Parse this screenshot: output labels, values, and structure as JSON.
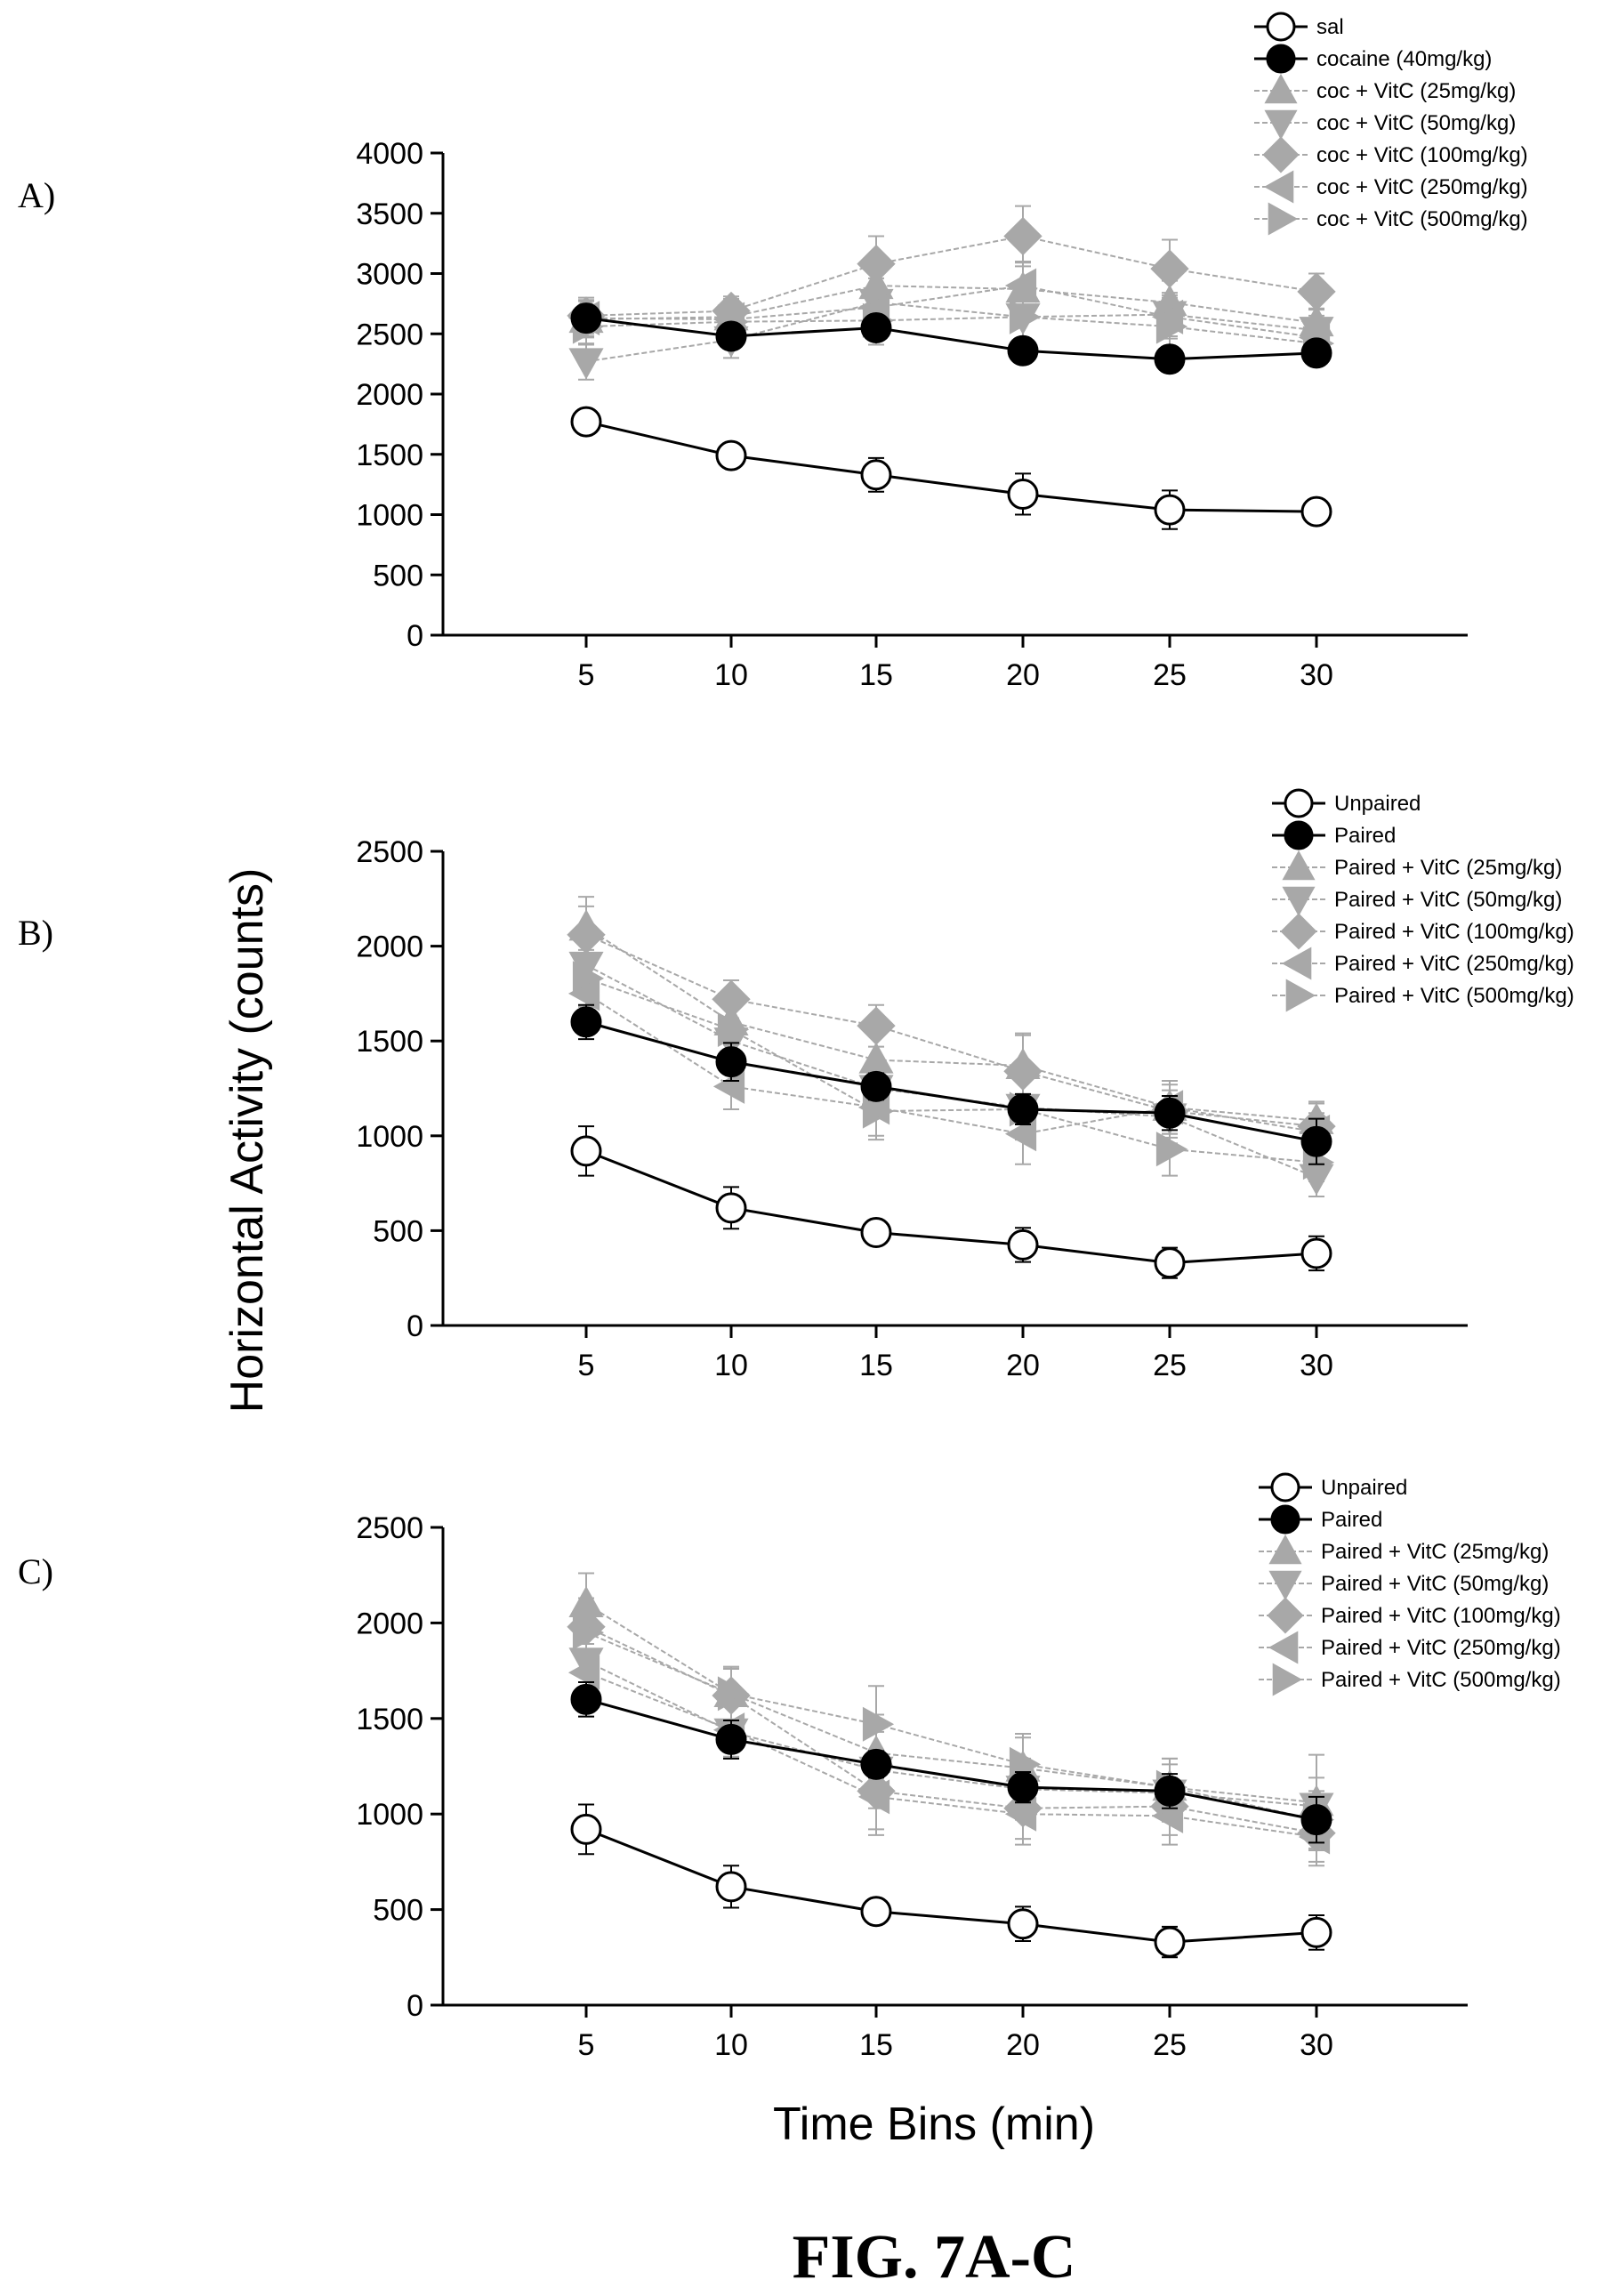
{
  "figure_title": "FIG. 7A-C",
  "shared_ylabel": "Horizontal Activity (counts)",
  "shared_xlabel": "Time Bins (min)",
  "colors": {
    "saline": "#ffffff",
    "cocaine": "#000000",
    "vitc": "#a8a8a8",
    "axis": "#000000"
  },
  "chart_data": [
    {
      "type": "line",
      "panel": "A)",
      "x": [
        5,
        10,
        15,
        20,
        25,
        30
      ],
      "xlim": [
        0,
        35
      ],
      "ylim": [
        0,
        4000
      ],
      "yticks": [
        0,
        500,
        1000,
        1500,
        2000,
        2500,
        3000,
        3500,
        4000
      ],
      "xticks": [
        5,
        10,
        15,
        20,
        25,
        30
      ],
      "legend_position": "top-right",
      "series": [
        {
          "name": "sal",
          "marker": "circle-open",
          "values": [
            1770,
            1490,
            1330,
            1170,
            1040,
            1025
          ],
          "errors": [
            60,
            80,
            140,
            170,
            160,
            90
          ]
        },
        {
          "name": "cocaine (40mg/kg)",
          "marker": "circle-filled",
          "values": [
            2630,
            2480,
            2550,
            2360,
            2290,
            2340
          ],
          "errors": [
            90,
            80,
            100,
            60,
            60,
            70
          ]
        },
        {
          "name": "coc + VitC (25mg/kg)",
          "marker": "triangle-up",
          "values": [
            2620,
            2640,
            2900,
            2870,
            2760,
            2590
          ],
          "errors": [
            150,
            150,
            200,
            220,
            180,
            120
          ]
        },
        {
          "name": "coc + VitC (50mg/kg)",
          "marker": "triangle-down",
          "values": [
            2270,
            2450,
            2760,
            2640,
            2660,
            2530
          ],
          "errors": [
            150,
            150,
            200,
            200,
            180,
            120
          ]
        },
        {
          "name": "coc + VitC (100mg/kg)",
          "marker": "diamond",
          "values": [
            2650,
            2690,
            3080,
            3310,
            3040,
            2850
          ],
          "errors": [
            150,
            120,
            230,
            250,
            240,
            150
          ]
        },
        {
          "name": "coc + VitC (250mg/kg)",
          "marker": "triangle-left",
          "values": [
            2630,
            2620,
            2720,
            2900,
            2640,
            2470
          ],
          "errors": [
            150,
            130,
            200,
            200,
            180,
            120
          ]
        },
        {
          "name": "coc + VitC (500mg/kg)",
          "marker": "triangle-right",
          "values": [
            2560,
            2600,
            2610,
            2640,
            2560,
            2420
          ],
          "errors": [
            150,
            130,
            200,
            200,
            180,
            120
          ]
        }
      ]
    },
    {
      "type": "line",
      "panel": "B)",
      "x": [
        5,
        10,
        15,
        20,
        25,
        30
      ],
      "xlim": [
        0,
        35
      ],
      "ylim": [
        0,
        2500
      ],
      "yticks": [
        0,
        500,
        1000,
        1500,
        2000,
        2500
      ],
      "xticks": [
        5,
        10,
        15,
        20,
        25,
        30
      ],
      "legend_position": "top-right",
      "series": [
        {
          "name": "Unpaired",
          "marker": "circle-open",
          "values": [
            920,
            620,
            490,
            425,
            330,
            380
          ],
          "errors": [
            130,
            110,
            60,
            90,
            80,
            90
          ]
        },
        {
          "name": "Paired",
          "marker": "circle-filled",
          "values": [
            1600,
            1390,
            1260,
            1140,
            1120,
            970
          ],
          "errors": [
            90,
            100,
            70,
            80,
            90,
            120
          ]
        },
        {
          "name": "Paired + VitC (25mg/kg)",
          "marker": "triangle-up",
          "values": [
            2100,
            1600,
            1400,
            1370,
            1150,
            1080
          ],
          "errors": [
            160,
            120,
            150,
            160,
            140,
            100
          ]
        },
        {
          "name": "Paired + VitC (50mg/kg)",
          "marker": "triangle-down",
          "values": [
            1900,
            1500,
            1250,
            1150,
            1100,
            780
          ],
          "errors": [
            150,
            120,
            150,
            160,
            140,
            100
          ]
        },
        {
          "name": "Paired + VitC (100mg/kg)",
          "marker": "diamond",
          "values": [
            2060,
            1720,
            1580,
            1340,
            1130,
            1050
          ],
          "errors": [
            150,
            100,
            110,
            200,
            140,
            120
          ]
        },
        {
          "name": "Paired + VitC (250mg/kg)",
          "marker": "triangle-left",
          "values": [
            1750,
            1260,
            1150,
            1010,
            1150,
            1020
          ],
          "errors": [
            150,
            120,
            150,
            160,
            140,
            100
          ]
        },
        {
          "name": "Paired + VitC (500mg/kg)",
          "marker": "triangle-right",
          "values": [
            1830,
            1560,
            1130,
            1140,
            930,
            860
          ],
          "errors": [
            150,
            120,
            150,
            160,
            140,
            100
          ]
        }
      ]
    },
    {
      "type": "line",
      "panel": "C)",
      "x": [
        5,
        10,
        15,
        20,
        25,
        30
      ],
      "xlim": [
        0,
        35
      ],
      "ylim": [
        0,
        2500
      ],
      "yticks": [
        0,
        500,
        1000,
        1500,
        2000,
        2500
      ],
      "xticks": [
        5,
        10,
        15,
        20,
        25,
        30
      ],
      "legend_position": "top-right",
      "series": [
        {
          "name": "Unpaired",
          "marker": "circle-open",
          "values": [
            920,
            620,
            490,
            425,
            330,
            380
          ],
          "errors": [
            130,
            110,
            60,
            90,
            80,
            90
          ]
        },
        {
          "name": "Paired",
          "marker": "circle-filled",
          "values": [
            1600,
            1390,
            1260,
            1140,
            1120,
            970
          ],
          "errors": [
            90,
            100,
            70,
            80,
            90,
            120
          ]
        },
        {
          "name": "Paired + VitC (25mg/kg)",
          "marker": "triangle-up",
          "values": [
            2100,
            1630,
            1320,
            1240,
            1140,
            1060
          ],
          "errors": [
            160,
            140,
            200,
            160,
            150,
            250
          ]
        },
        {
          "name": "Paired + VitC (50mg/kg)",
          "marker": "triangle-down",
          "values": [
            1800,
            1430,
            1230,
            1130,
            1110,
            1040
          ],
          "errors": [
            150,
            140,
            200,
            160,
            150,
            150
          ]
        },
        {
          "name": "Paired + VitC (100mg/kg)",
          "marker": "diamond",
          "values": [
            1980,
            1620,
            1120,
            1030,
            1040,
            900
          ],
          "errors": [
            150,
            140,
            200,
            160,
            150,
            150
          ]
        },
        {
          "name": "Paired + VitC (250mg/kg)",
          "marker": "triangle-left",
          "values": [
            1740,
            1440,
            1090,
            1000,
            990,
            880
          ],
          "errors": [
            150,
            140,
            200,
            160,
            150,
            150
          ]
        },
        {
          "name": "Paired + VitC (500mg/kg)",
          "marker": "triangle-right",
          "values": [
            1950,
            1630,
            1470,
            1260,
            1140,
            970
          ],
          "errors": [
            150,
            140,
            200,
            160,
            150,
            150
          ]
        }
      ]
    }
  ]
}
